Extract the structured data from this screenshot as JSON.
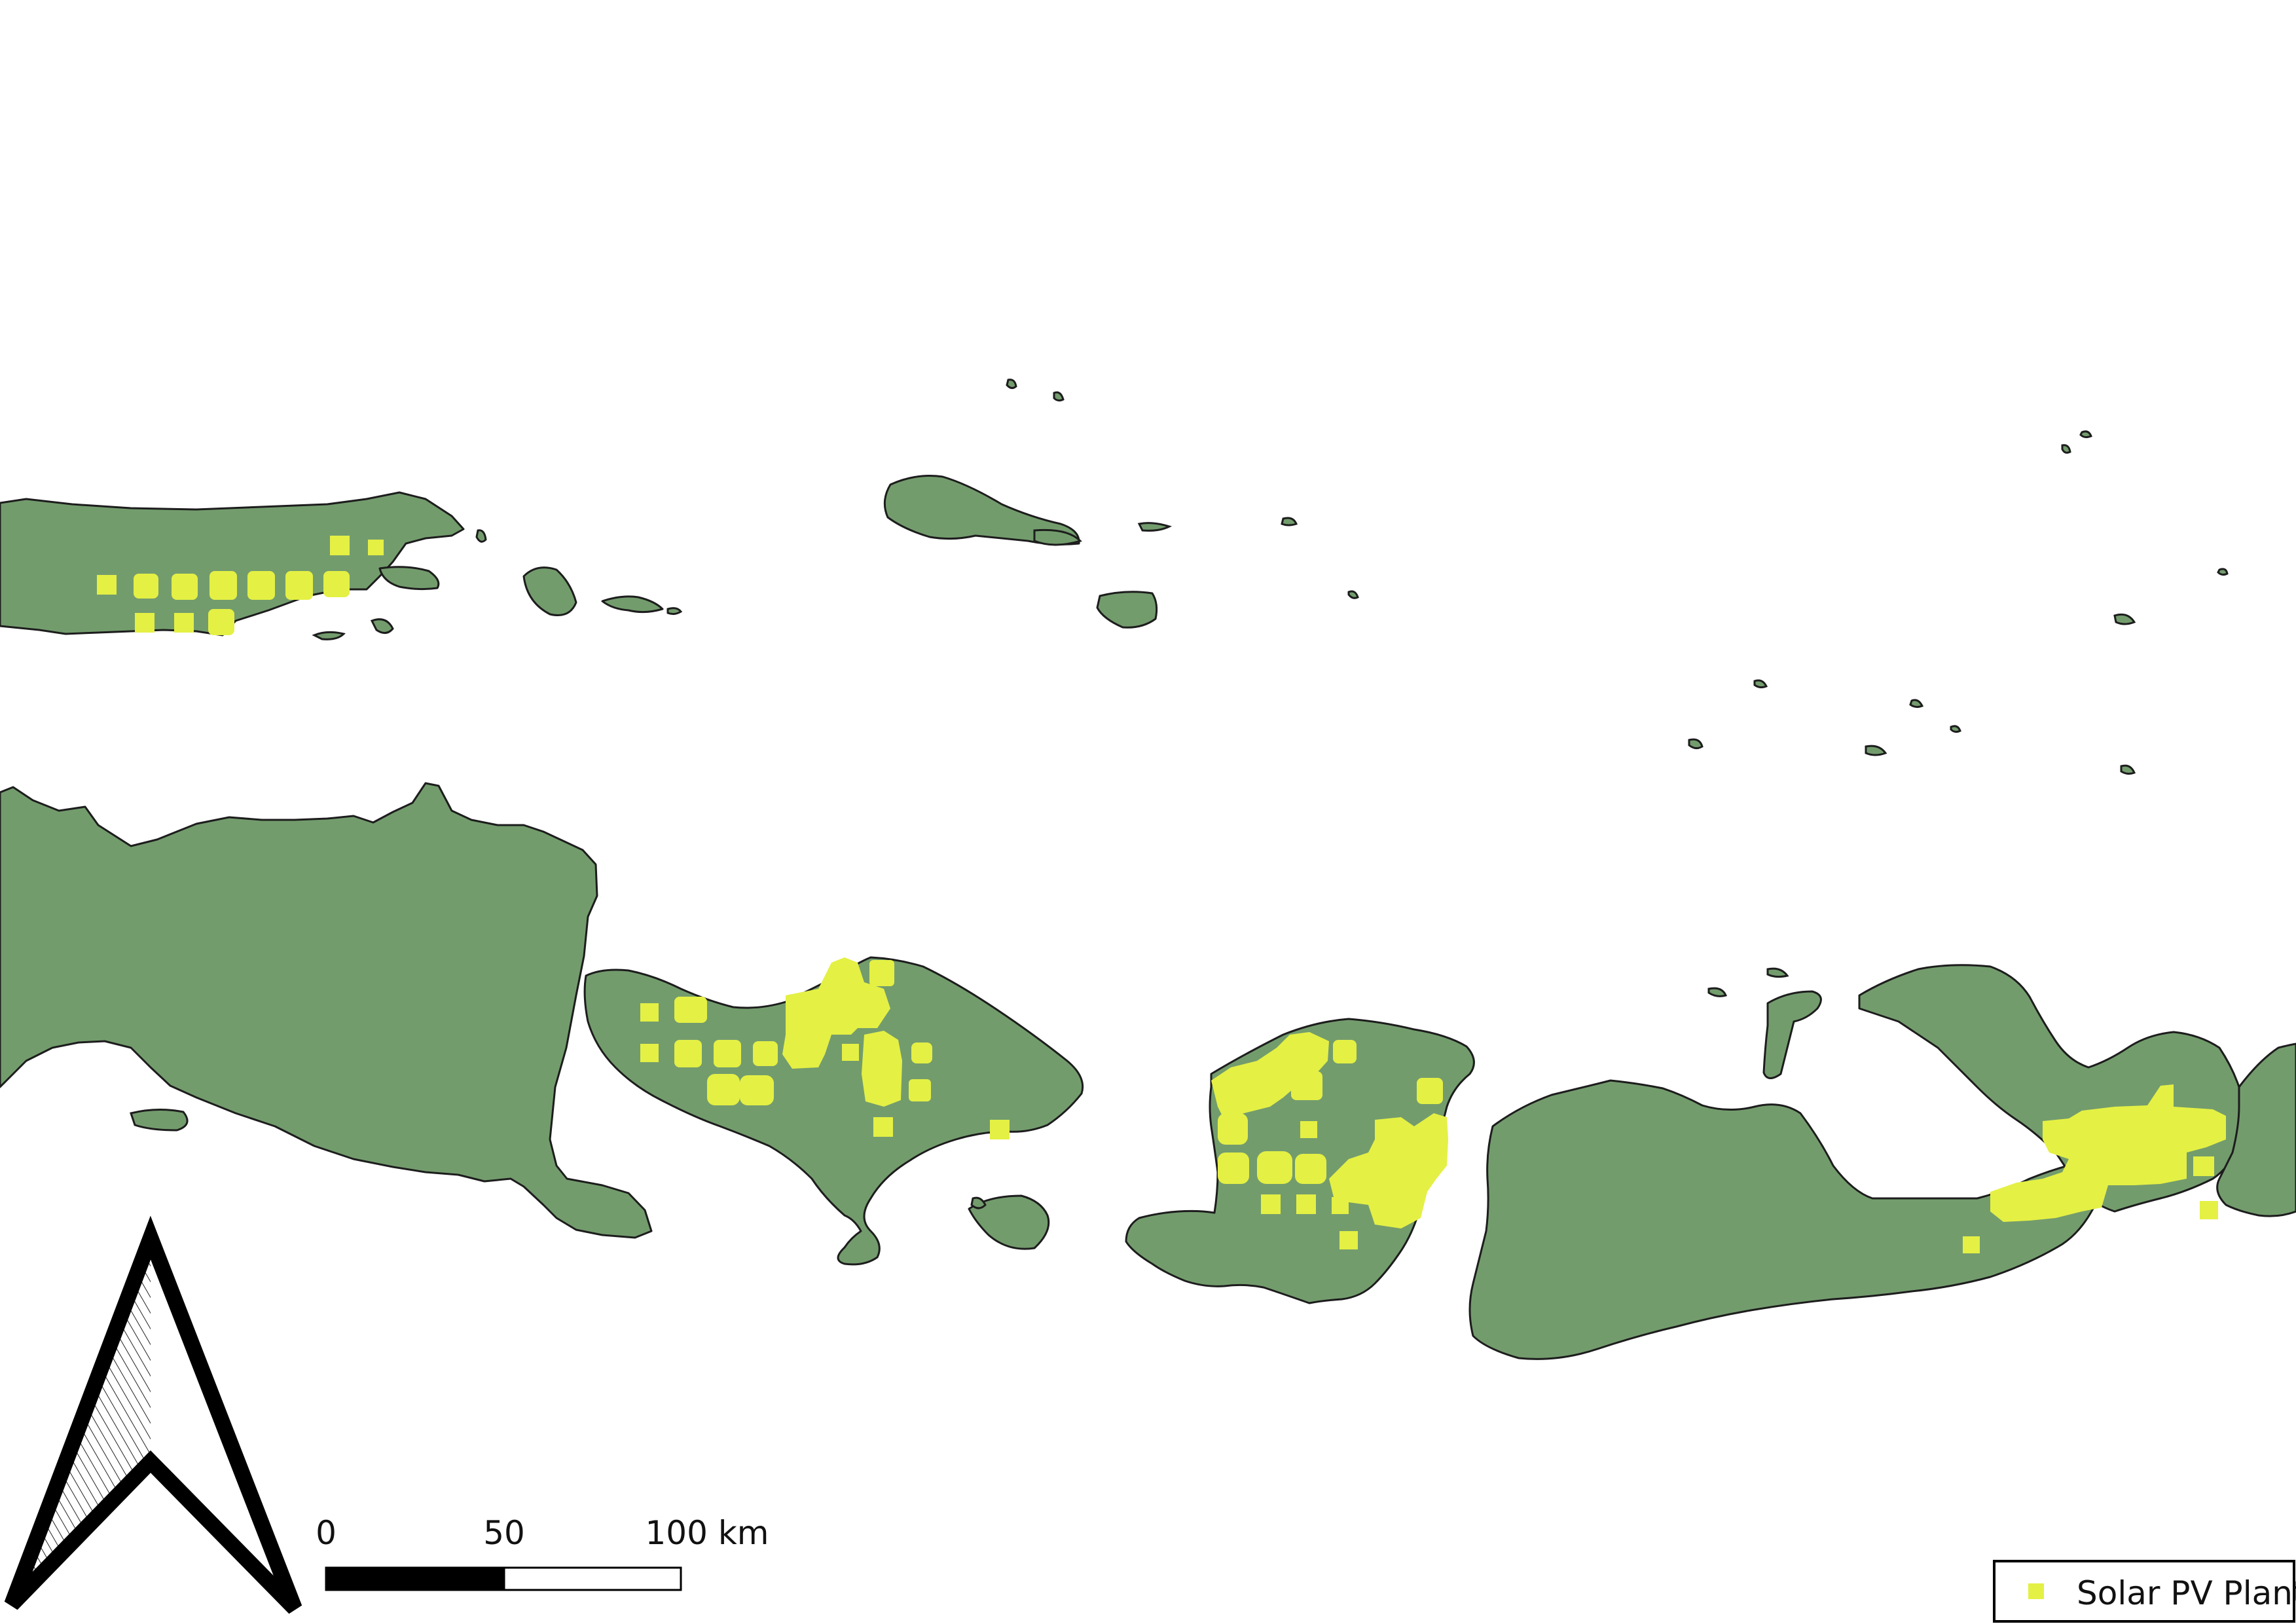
{
  "map": {
    "legend": {
      "entries": [
        {
          "label": "Solar PV Plant",
          "color": "#e4f044"
        }
      ]
    },
    "scale_bar": {
      "labels": [
        "0",
        "50",
        "100 km"
      ]
    },
    "north_arrow": {
      "icon": "north-arrow-icon"
    },
    "colors": {
      "land": "#739c6d",
      "coastline": "#1d1d1d",
      "solar_pv": "#e4f044",
      "background": "#ffffff"
    }
  }
}
